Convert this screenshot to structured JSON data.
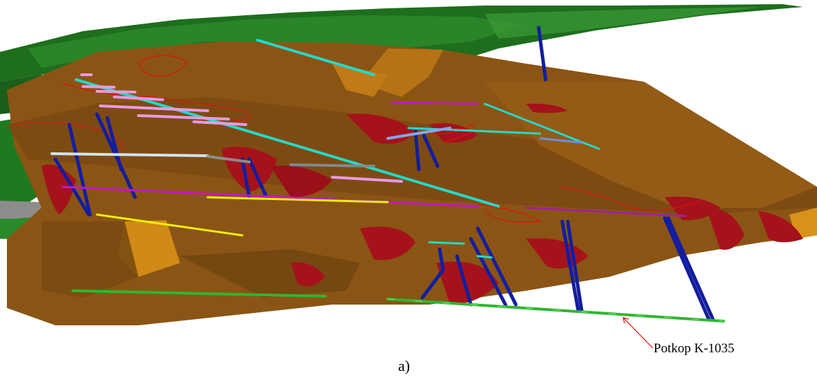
{
  "figure": {
    "callout_label": "Potkop K-1035",
    "caption": "a)"
  },
  "colors": {
    "background": "#ffffff",
    "terrain_green": "#1e6e1e",
    "orebody_brown": "#8a5514",
    "orebody_light": "#b57316",
    "orebody_red": "#a5121b",
    "shaft_blue": "#141d9e",
    "drift_cyan": "#27d8c8",
    "drift_magenta": "#c814c8",
    "drift_pink": "#e79ae3",
    "drift_yellow": "#f0f000",
    "drift_green": "#2fb52f",
    "outline_red": "#e01010",
    "gray_rock": "#8d8d8d",
    "callout_red": "#ff0000"
  }
}
